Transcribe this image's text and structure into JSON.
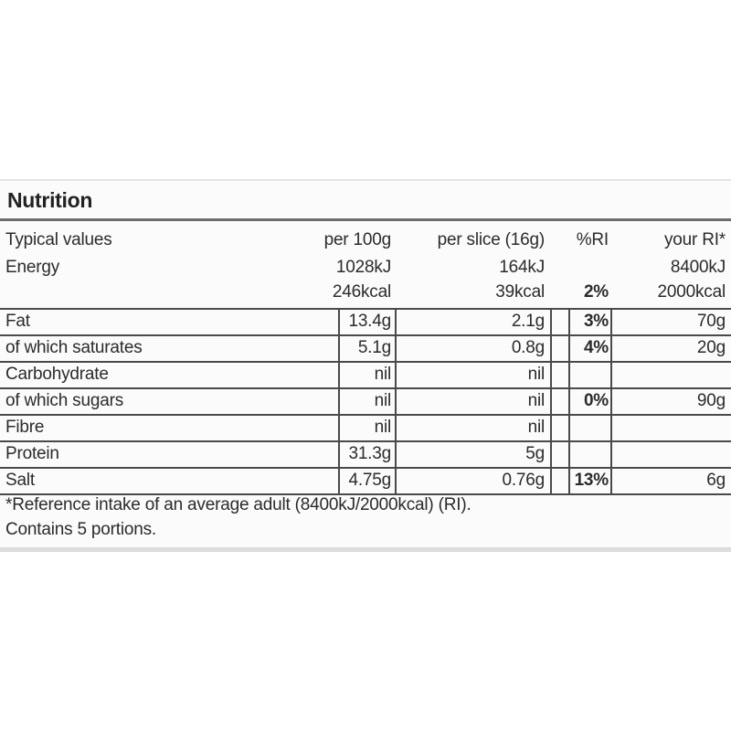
{
  "title": "Nutrition",
  "header": {
    "label": "Typical values",
    "per_100g": "per 100g",
    "per_slice": "per slice (16g)",
    "ri_percent": "%RI",
    "your_ri": "your RI*"
  },
  "energy": {
    "label": "Energy",
    "per_100g_kj": "1028kJ",
    "per_100g_kcal": "246kcal",
    "per_slice_kj": "164kJ",
    "per_slice_kcal": "39kcal",
    "ri_percent": "2%",
    "your_ri_kj": "8400kJ",
    "your_ri_kcal": "2000kcal"
  },
  "rows": [
    {
      "label": "Fat",
      "per_100g": "13.4g",
      "per_slice": "2.1g",
      "ri_percent": "3%",
      "your_ri": "70g"
    },
    {
      "label": "of which saturates",
      "per_100g": "5.1g",
      "per_slice": "0.8g",
      "ri_percent": "4%",
      "your_ri": "20g"
    },
    {
      "label": "Carbohydrate",
      "per_100g": "nil",
      "per_slice": "nil",
      "ri_percent": "",
      "your_ri": ""
    },
    {
      "label": "of which sugars",
      "per_100g": "nil",
      "per_slice": "nil",
      "ri_percent": "0%",
      "your_ri": "90g"
    },
    {
      "label": "Fibre",
      "per_100g": "nil",
      "per_slice": "nil",
      "ri_percent": "",
      "your_ri": ""
    },
    {
      "label": "Protein",
      "per_100g": "31.3g",
      "per_slice": "5g",
      "ri_percent": "",
      "your_ri": ""
    },
    {
      "label": "Salt",
      "per_100g": "4.75g",
      "per_slice": "0.76g",
      "ri_percent": "13%",
      "your_ri": "6g"
    }
  ],
  "footnote": "*Reference intake of an average adult (8400kJ/2000kcal) (RI).",
  "portions": "Contains 5 portions."
}
